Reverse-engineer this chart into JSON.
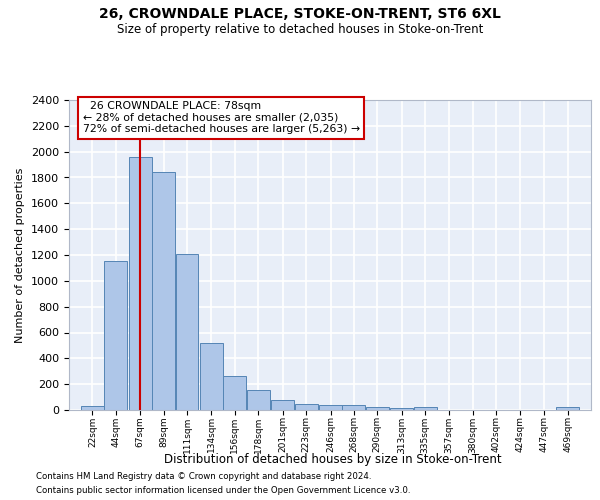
{
  "title1": "26, CROWNDALE PLACE, STOKE-ON-TRENT, ST6 6XL",
  "title2": "Size of property relative to detached houses in Stoke-on-Trent",
  "xlabel": "Distribution of detached houses by size in Stoke-on-Trent",
  "ylabel": "Number of detached properties",
  "annotation_title": "  26 CROWNDALE PLACE: 78sqm",
  "annotation_line1": "← 28% of detached houses are smaller (2,035)",
  "annotation_line2": "72% of semi-detached houses are larger (5,263) →",
  "footer1": "Contains HM Land Registry data © Crown copyright and database right 2024.",
  "footer2": "Contains public sector information licensed under the Open Government Licence v3.0.",
  "bar_color": "#aec6e8",
  "bar_edge_color": "#5585b5",
  "background_color": "#e8eef8",
  "grid_color": "#ffffff",
  "annotation_box_color": "#cc0000",
  "vline_color": "#cc0000",
  "vline_x": 78,
  "bins": [
    22,
    44,
    67,
    89,
    111,
    134,
    156,
    178,
    201,
    223,
    246,
    268,
    290,
    313,
    335,
    357,
    380,
    402,
    424,
    447,
    469
  ],
  "counts": [
    30,
    1150,
    1960,
    1840,
    1210,
    515,
    265,
    155,
    80,
    50,
    40,
    40,
    20,
    15,
    20,
    0,
    0,
    0,
    0,
    0,
    20
  ],
  "ylim": [
    0,
    2400
  ],
  "yticks": [
    0,
    200,
    400,
    600,
    800,
    1000,
    1200,
    1400,
    1600,
    1800,
    2000,
    2200,
    2400
  ]
}
